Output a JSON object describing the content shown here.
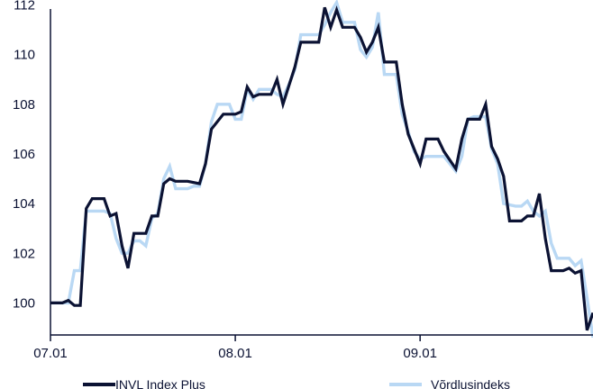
{
  "chart_data": {
    "type": "line",
    "title": "",
    "xlabel": "",
    "ylabel": "",
    "ylim": [
      98.6,
      112.2
    ],
    "yticks": [
      100,
      102,
      104,
      106,
      108,
      110,
      112
    ],
    "xlim": [
      "2025-07-01",
      "2025-09-30"
    ],
    "xticks": [
      {
        "date": "2025-07-01",
        "label": "07.01"
      },
      {
        "date": "2025-08-01",
        "label": "08.01"
      },
      {
        "date": "2025-09-01",
        "label": "09.01"
      }
    ],
    "grid": false,
    "legend": "bottom",
    "series": [
      {
        "name": "INVL Index Plus",
        "color": "#0b1233",
        "dates": [
          "2025-07-01",
          "2025-07-03",
          "2025-07-04",
          "2025-07-05",
          "2025-07-06",
          "2025-07-07",
          "2025-07-08",
          "2025-07-10",
          "2025-07-11",
          "2025-07-12",
          "2025-07-13",
          "2025-07-14",
          "2025-07-15",
          "2025-07-16",
          "2025-07-17",
          "2025-07-18",
          "2025-07-19",
          "2025-07-20",
          "2025-07-21",
          "2025-07-22",
          "2025-07-24",
          "2025-07-26",
          "2025-07-27",
          "2025-07-28",
          "2025-07-30",
          "2025-07-31",
          "2025-08-01",
          "2025-08-02",
          "2025-08-03",
          "2025-08-04",
          "2025-08-05",
          "2025-08-06",
          "2025-08-07",
          "2025-08-08",
          "2025-08-09",
          "2025-08-11",
          "2025-08-12",
          "2025-08-13",
          "2025-08-14",
          "2025-08-15",
          "2025-08-16",
          "2025-08-17",
          "2025-08-18",
          "2025-08-19",
          "2025-08-20",
          "2025-08-21",
          "2025-08-22",
          "2025-08-23",
          "2025-08-24",
          "2025-08-25",
          "2025-08-26",
          "2025-08-27",
          "2025-08-28",
          "2025-08-29",
          "2025-08-30",
          "2025-08-31",
          "2025-09-01",
          "2025-09-02",
          "2025-09-03",
          "2025-09-04",
          "2025-09-05",
          "2025-09-07",
          "2025-09-08",
          "2025-09-09",
          "2025-09-10",
          "2025-09-11",
          "2025-09-12",
          "2025-09-13",
          "2025-09-14",
          "2025-09-15",
          "2025-09-16",
          "2025-09-17",
          "2025-09-18",
          "2025-09-19",
          "2025-09-20",
          "2025-09-21",
          "2025-09-22",
          "2025-09-23",
          "2025-09-24",
          "2025-09-25",
          "2025-09-26",
          "2025-09-27",
          "2025-09-28",
          "2025-09-29",
          "2025-09-30"
        ],
        "values": [
          100.0,
          100.0,
          100.1,
          99.9,
          99.9,
          103.8,
          104.2,
          104.2,
          103.5,
          103.6,
          102.3,
          101.4,
          102.8,
          102.8,
          102.8,
          103.5,
          103.5,
          104.8,
          105.0,
          104.9,
          104.9,
          104.8,
          105.6,
          107.0,
          107.6,
          107.6,
          107.6,
          107.7,
          108.7,
          108.3,
          108.4,
          108.4,
          108.4,
          109.0,
          108.0,
          109.5,
          110.5,
          110.5,
          110.5,
          110.5,
          111.9,
          111.1,
          111.8,
          111.1,
          111.1,
          111.1,
          110.7,
          110.1,
          110.5,
          111.1,
          109.7,
          109.7,
          109.7,
          108.0,
          106.8,
          106.2,
          105.6,
          106.6,
          106.6,
          106.6,
          106.1,
          105.4,
          106.6,
          107.4,
          107.4,
          107.4,
          108.0,
          106.3,
          105.8,
          105.1,
          103.3,
          103.3,
          103.3,
          103.5,
          103.5,
          104.4,
          102.6,
          101.3,
          101.3,
          101.3,
          101.4,
          101.2,
          101.3,
          98.9,
          99.6
        ]
      },
      {
        "name": "Võrdlusindeks",
        "color": "#b9d8f4",
        "dates": [
          "2025-07-01",
          "2025-07-04",
          "2025-07-05",
          "2025-07-06",
          "2025-07-07",
          "2025-07-08",
          "2025-07-09",
          "2025-07-10",
          "2025-07-11",
          "2025-07-12",
          "2025-07-13",
          "2025-07-14",
          "2025-07-15",
          "2025-07-16",
          "2025-07-17",
          "2025-07-18",
          "2025-07-19",
          "2025-07-20",
          "2025-07-21",
          "2025-07-22",
          "2025-07-24",
          "2025-07-25",
          "2025-07-26",
          "2025-07-27",
          "2025-07-28",
          "2025-07-29",
          "2025-07-31",
          "2025-08-01",
          "2025-08-02",
          "2025-08-03",
          "2025-08-04",
          "2025-08-05",
          "2025-08-06",
          "2025-08-07",
          "2025-08-08",
          "2025-08-09",
          "2025-08-10",
          "2025-08-11",
          "2025-08-12",
          "2025-08-14",
          "2025-08-15",
          "2025-08-16",
          "2025-08-17",
          "2025-08-18",
          "2025-08-19",
          "2025-08-21",
          "2025-08-22",
          "2025-08-23",
          "2025-08-24",
          "2025-08-25",
          "2025-08-26",
          "2025-08-27",
          "2025-08-28",
          "2025-08-29",
          "2025-08-30",
          "2025-08-31",
          "2025-09-01",
          "2025-09-02",
          "2025-09-04",
          "2025-09-05",
          "2025-09-06",
          "2025-09-07",
          "2025-09-08",
          "2025-09-09",
          "2025-09-10",
          "2025-09-11",
          "2025-09-12",
          "2025-09-13",
          "2025-09-14",
          "2025-09-15",
          "2025-09-17",
          "2025-09-18",
          "2025-09-19",
          "2025-09-20",
          "2025-09-21",
          "2025-09-22",
          "2025-09-23",
          "2025-09-24",
          "2025-09-26",
          "2025-09-27",
          "2025-09-28",
          "2025-09-29",
          "2025-09-30"
        ],
        "values": [
          100.0,
          100.0,
          101.3,
          101.3,
          103.7,
          103.7,
          103.7,
          103.7,
          103.6,
          102.6,
          102.0,
          102.0,
          102.5,
          102.5,
          102.3,
          103.4,
          103.6,
          105.0,
          105.5,
          104.6,
          104.6,
          104.7,
          104.7,
          105.6,
          107.3,
          108.0,
          108.0,
          107.4,
          107.4,
          108.6,
          108.2,
          108.6,
          108.6,
          108.6,
          108.4,
          108.3,
          108.8,
          109.4,
          110.8,
          110.8,
          110.8,
          111.2,
          111.7,
          112.1,
          111.3,
          111.3,
          110.2,
          109.9,
          110.3,
          111.7,
          109.2,
          109.2,
          109.2,
          107.6,
          106.9,
          106.1,
          105.8,
          105.9,
          105.9,
          105.9,
          105.6,
          105.3,
          105.9,
          107.4,
          107.5,
          107.5,
          107.5,
          106.2,
          105.6,
          104.0,
          103.9,
          103.9,
          104.1,
          103.7,
          103.5,
          103.7,
          102.4,
          101.8,
          101.8,
          101.5,
          101.7,
          100.2,
          98.6
        ]
      }
    ]
  }
}
